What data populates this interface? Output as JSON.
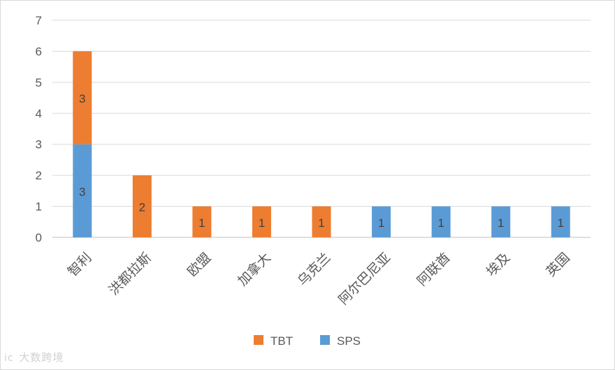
{
  "chart_data": {
    "type": "bar",
    "stacked": true,
    "title": "",
    "xlabel": "",
    "ylabel": "",
    "ylim": [
      0,
      7
    ],
    "yticks": [
      0,
      1,
      2,
      3,
      4,
      5,
      6,
      7
    ],
    "grid": true,
    "legend_position": "bottom",
    "categories": [
      "智利",
      "洪都拉斯",
      "欧盟",
      "加拿大",
      "乌克兰",
      "阿尔巴尼亚",
      "阿联酋",
      "埃及",
      "英国"
    ],
    "series": [
      {
        "name": "SPS",
        "color": "#5b9bd5",
        "values": [
          3,
          0,
          0,
          0,
          0,
          1,
          1,
          1,
          1
        ]
      },
      {
        "name": "TBT",
        "color": "#ed7d31",
        "values": [
          3,
          2,
          1,
          1,
          1,
          0,
          0,
          0,
          0
        ]
      }
    ],
    "legend_order": [
      "TBT",
      "SPS"
    ]
  },
  "watermark": {
    "icon": "ic",
    "text": "大数跨境"
  }
}
